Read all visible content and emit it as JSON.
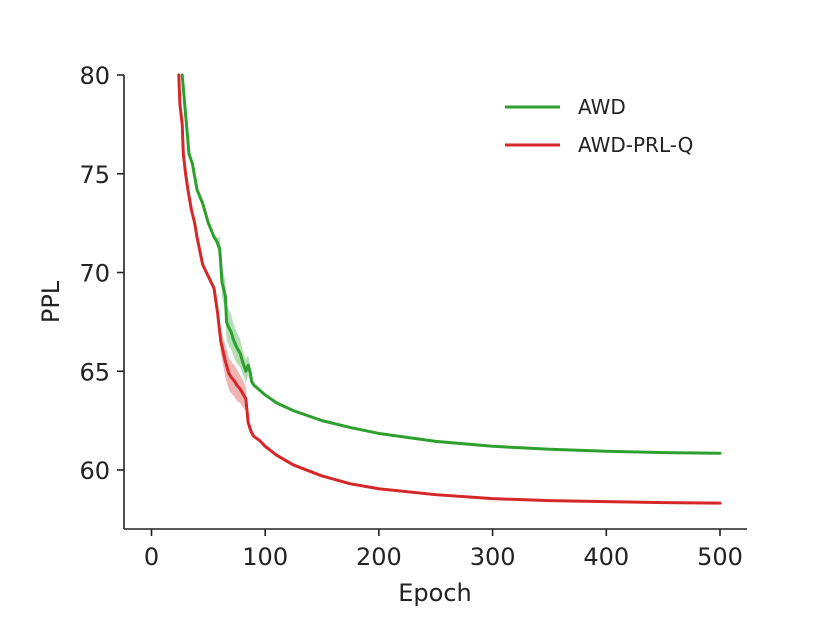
{
  "chart_data": {
    "type": "line",
    "title": "",
    "xlabel": "Epoch",
    "ylabel": "PPL",
    "xlim": [
      -25,
      525
    ],
    "ylim": [
      57,
      80
    ],
    "xticks": [
      0,
      100,
      200,
      300,
      400,
      500
    ],
    "yticks": [
      60,
      65,
      70,
      75,
      80
    ],
    "grid": false,
    "legend": "top-right",
    "series": [
      {
        "name": "AWD",
        "color": "#2ca02c",
        "x": [
          27,
          30,
          33,
          36,
          40,
          45,
          50,
          55,
          58,
          60,
          62,
          65,
          66,
          68,
          70,
          72,
          75,
          78,
          80,
          83,
          85,
          87,
          88,
          90,
          100,
          110,
          125,
          150,
          175,
          200,
          250,
          300,
          350,
          400,
          450,
          500
        ],
        "y": [
          80,
          78,
          76,
          75.5,
          74.2,
          73.5,
          72.5,
          71.8,
          71.5,
          71.2,
          69.5,
          68.8,
          67.5,
          67.2,
          67.0,
          66.6,
          66.2,
          65.9,
          65.5,
          65.0,
          65.3,
          64.9,
          64.5,
          64.3,
          63.8,
          63.4,
          63.0,
          62.5,
          62.15,
          61.85,
          61.45,
          61.2,
          61.05,
          60.95,
          60.88,
          60.85
        ],
        "band": [
          0,
          0,
          0,
          0,
          0,
          0,
          0,
          0,
          0.3,
          0.6,
          0.7,
          0.8,
          0.9,
          0.9,
          0.9,
          0.8,
          0.8,
          0.7,
          0.6,
          0.6,
          0.5,
          0.4,
          0.2,
          0,
          0,
          0,
          0,
          0,
          0,
          0,
          0,
          0,
          0,
          0,
          0,
          0
        ]
      },
      {
        "name": "AWD-PRL-Q",
        "color": "#d62728",
        "x": [
          24,
          25,
          27,
          28,
          30,
          32,
          35,
          38,
          40,
          45,
          50,
          55,
          58,
          60,
          61,
          63,
          65,
          68,
          70,
          73,
          75,
          78,
          80,
          83,
          85,
          88,
          90,
          95,
          100,
          110,
          125,
          150,
          175,
          200,
          250,
          300,
          350,
          400,
          450,
          500
        ],
        "y": [
          80,
          78.5,
          77.5,
          76,
          75,
          74.2,
          73.2,
          72.5,
          71.8,
          70.4,
          69.8,
          69.2,
          68.0,
          67.0,
          66.5,
          66.0,
          65.5,
          64.9,
          64.7,
          64.5,
          64.3,
          64.1,
          63.9,
          63.6,
          62.4,
          61.9,
          61.7,
          61.5,
          61.2,
          60.75,
          60.25,
          59.7,
          59.3,
          59.05,
          58.75,
          58.55,
          58.45,
          58.4,
          58.35,
          58.32
        ],
        "band": [
          0,
          0,
          0,
          0,
          0,
          0,
          0,
          0,
          0,
          0,
          0,
          0,
          0.2,
          0.4,
          0.6,
          0.7,
          0.8,
          0.8,
          0.8,
          0.8,
          0.8,
          0.7,
          0.7,
          0.6,
          0.3,
          0.2,
          0,
          0,
          0,
          0,
          0,
          0,
          0,
          0,
          0,
          0,
          0,
          0,
          0,
          0
        ]
      }
    ]
  }
}
